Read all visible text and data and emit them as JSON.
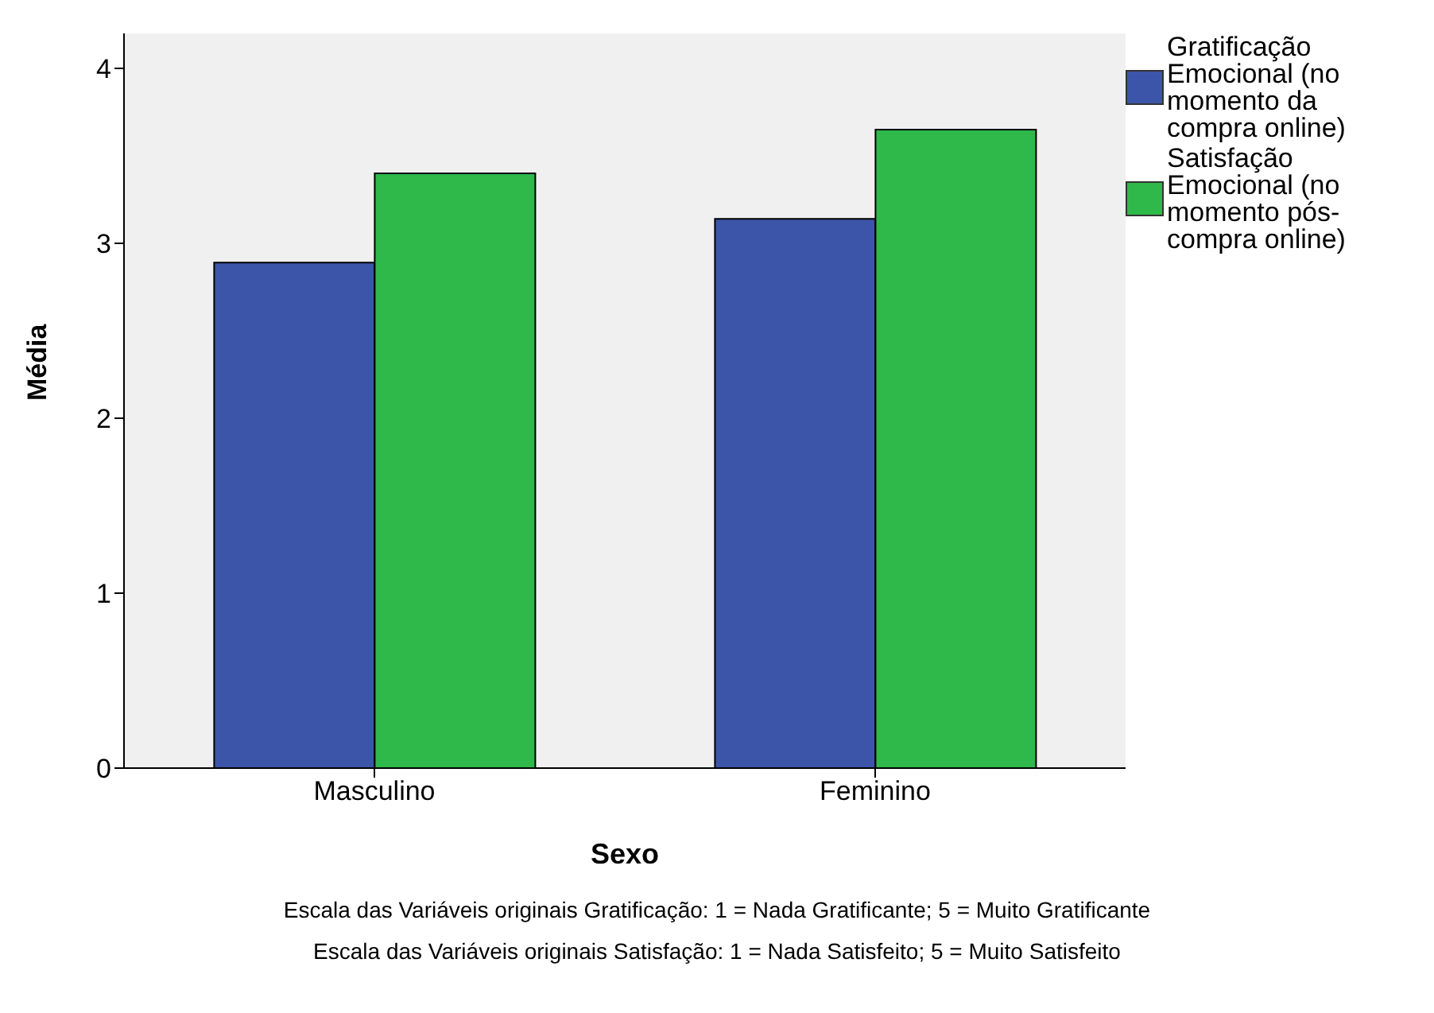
{
  "chart_data": {
    "type": "bar",
    "xlabel": "Sexo",
    "ylabel": "Média",
    "categories": [
      "Masculino",
      "Feminino"
    ],
    "series": [
      {
        "name": "Gratificação Emocional (no momento da compra online)",
        "color": "#3c55a8",
        "values": [
          2.89,
          3.14
        ]
      },
      {
        "name": "Satisfação Emocional (no momento pós-compra online)",
        "color": "#2eb94a",
        "values": [
          3.4,
          3.65
        ]
      }
    ],
    "ylim": [
      0,
      4.2
    ],
    "yticks": [
      0,
      1,
      2,
      3,
      4
    ],
    "grid": false,
    "legend": "top right",
    "annotations": [
      "Escala das Variáveis originais Gratificação: 1 = Nada Gratificante; 5 = Muito Gratificante",
      "Escala das Variáveis originais Satisfação: 1 = Nada Satisfeito; 5 = Muito Satisfeito"
    ]
  }
}
